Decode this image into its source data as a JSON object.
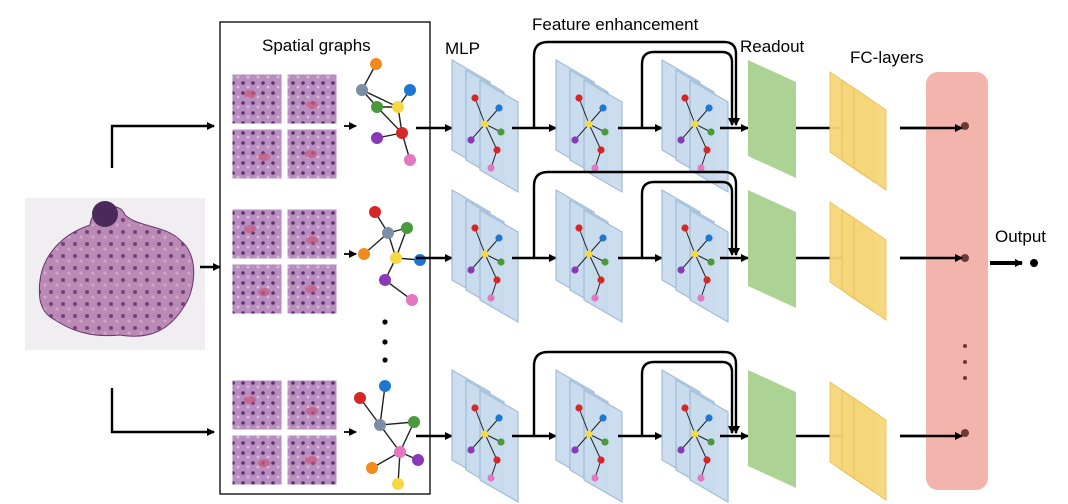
{
  "labels": {
    "spatial_graphs": "Spatial graphs",
    "mlp": "MLP",
    "feature_enhancement": "Feature enhancement",
    "readout": "Readout",
    "fc_layers": "FC-layers",
    "output": "Output"
  },
  "colors": {
    "tissue": "#a06a9a",
    "patch_base": "#b08ab8",
    "patch_highlight": "#c85a7a",
    "layer_fill": "#c9dcee",
    "layer_edge": "#9dbad6",
    "readout_fill": "#a9d18e",
    "fc_fill": "#f6d67a",
    "output_box": "#f2b4ac",
    "node_red": "#d62728",
    "node_blue": "#1f77d4",
    "node_green": "#4a9a3a",
    "node_orange": "#f28a1e",
    "node_purple": "#8a3ab9",
    "node_pink": "#e377c2",
    "node_yellow": "#f5d842",
    "node_slate": "#7a8ea8"
  },
  "icons": [
    "tissue-image",
    "histology-patch",
    "graph-icon",
    "arrow-icon",
    "ellipsis-dots-icon"
  ]
}
